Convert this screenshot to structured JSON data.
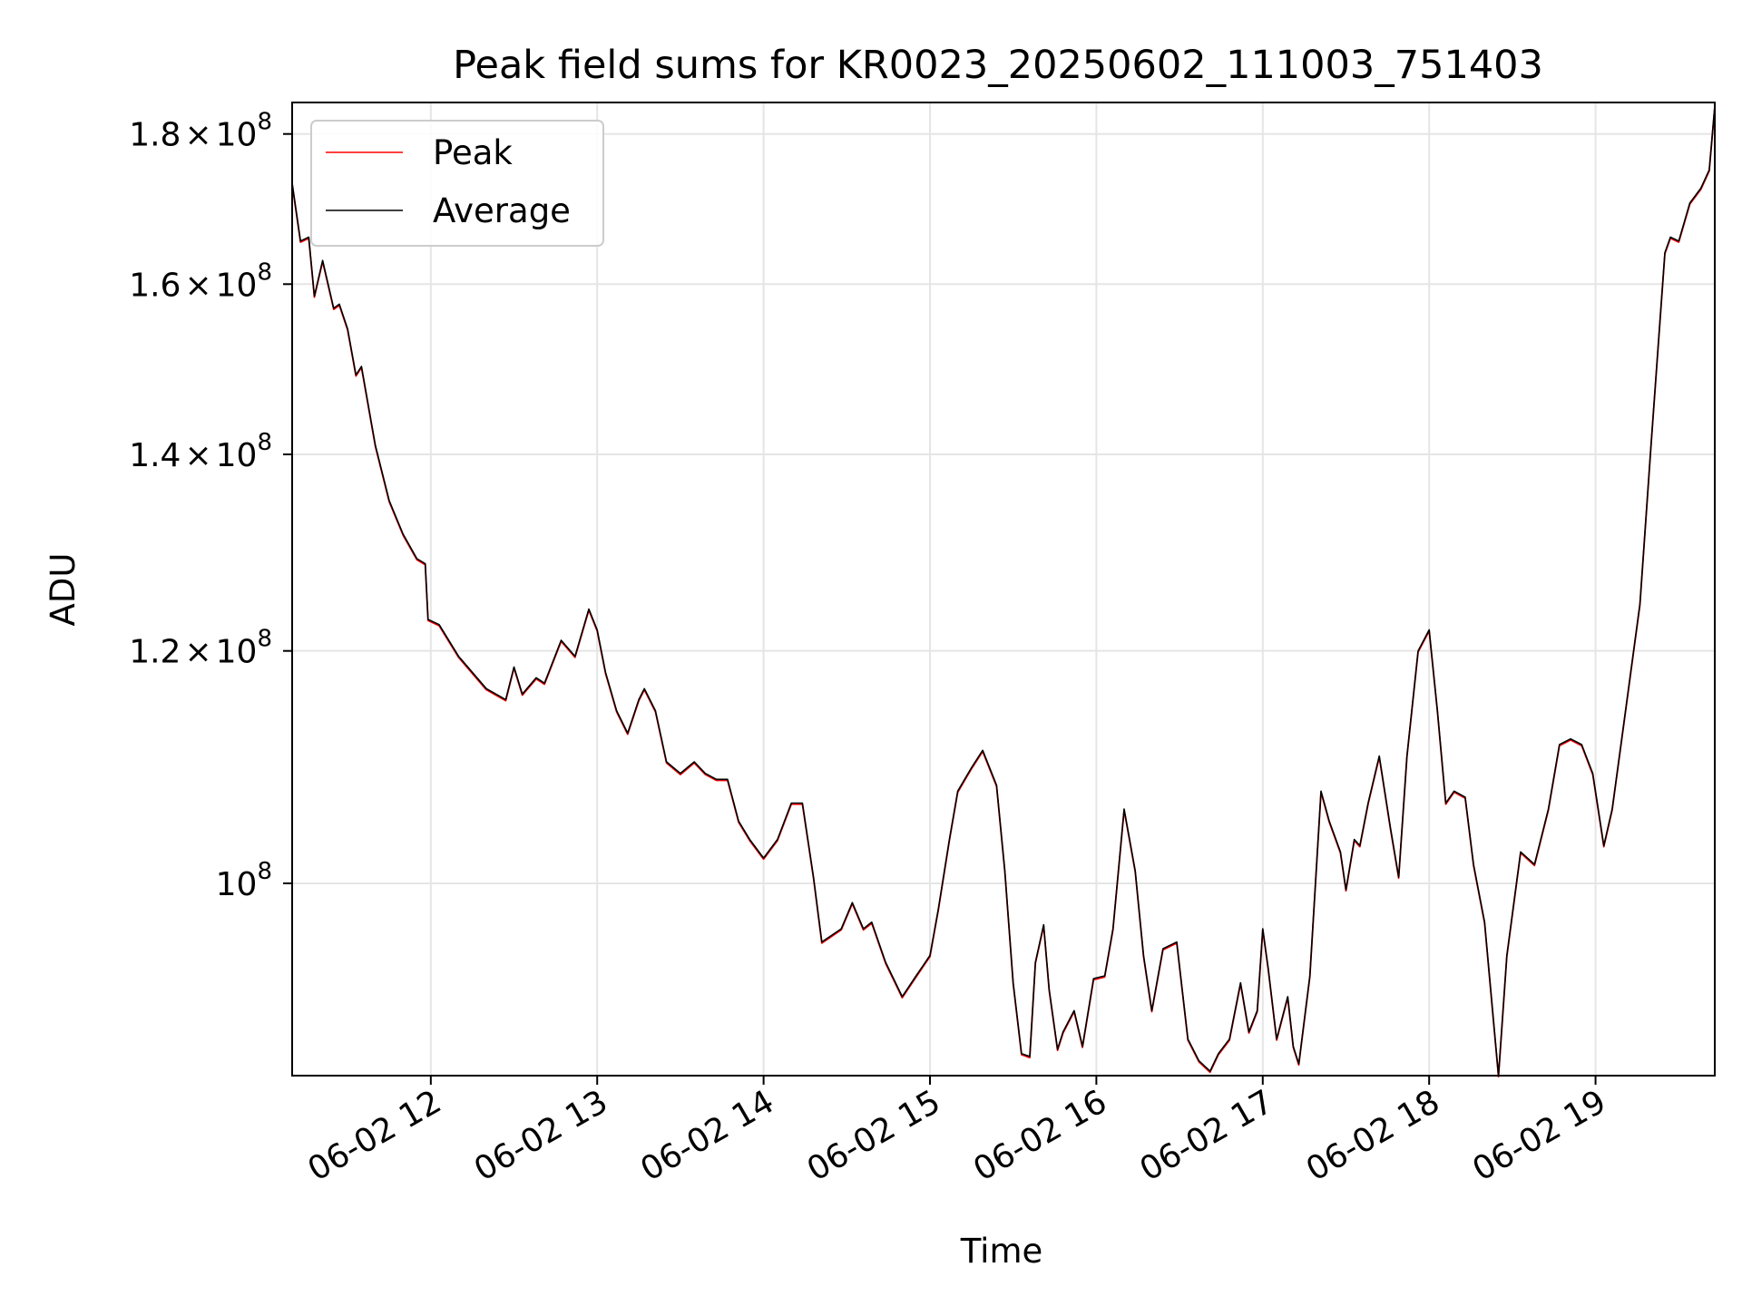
{
  "chart_data": {
    "type": "line",
    "title": "Peak field sums for KR0023_20250602_111003_751403",
    "xlabel": "Time",
    "ylabel": "ADU",
    "y_scale": "log",
    "xlim": [
      "06-02 11:10",
      "06-02 19:43"
    ],
    "ylim": [
      86000000,
      184500000
    ],
    "grid": true,
    "legend": "upper left",
    "x_ticks": [
      {
        "t": "06-02 12:00",
        "label": "06-02 12"
      },
      {
        "t": "06-02 13:00",
        "label": "06-02 13"
      },
      {
        "t": "06-02 14:00",
        "label": "06-02 14"
      },
      {
        "t": "06-02 15:00",
        "label": "06-02 15"
      },
      {
        "t": "06-02 16:00",
        "label": "06-02 16"
      },
      {
        "t": "06-02 17:00",
        "label": "06-02 17"
      },
      {
        "t": "06-02 18:00",
        "label": "06-02 18"
      },
      {
        "t": "06-02 19:00",
        "label": "06-02 19"
      }
    ],
    "y_ticks": [
      {
        "value": 100000000,
        "mant": "",
        "base": "10",
        "exp": "8"
      },
      {
        "value": 120000000,
        "mant": "1.2",
        "base": "10",
        "exp": "8"
      },
      {
        "value": 140000000,
        "mant": "1.4",
        "base": "10",
        "exp": "8"
      },
      {
        "value": 160000000,
        "mant": "1.6",
        "base": "10",
        "exp": "8"
      },
      {
        "value": 180000000,
        "mant": "1.8",
        "base": "10",
        "exp": "8"
      }
    ],
    "colors": {
      "peak": "#ff0000",
      "average": "#000000"
    },
    "series": [
      {
        "name": "Peak",
        "color": "#ff0000"
      },
      {
        "name": "Average",
        "color": "#000000"
      }
    ],
    "points": [
      [
        "06-02 11:10",
        173.2
      ],
      [
        "06-02 11:13",
        165.5
      ],
      [
        "06-02 11:16",
        166.0
      ],
      [
        "06-02 11:18",
        158.5
      ],
      [
        "06-02 11:21",
        163.0
      ],
      [
        "06-02 11:25",
        157.0
      ],
      [
        "06-02 11:27",
        157.5
      ],
      [
        "06-02 11:30",
        154.5
      ],
      [
        "06-02 11:33",
        149.0
      ],
      [
        "06-02 11:35",
        150.0
      ],
      [
        "06-02 11:40",
        141.0
      ],
      [
        "06-02 11:45",
        135.0
      ],
      [
        "06-02 11:50",
        131.5
      ],
      [
        "06-02 11:55",
        129.0
      ],
      [
        "06-02 11:58",
        128.5
      ],
      [
        "06-02 11:59",
        123.0
      ],
      [
        "06-02 12:03",
        122.5
      ],
      [
        "06-02 12:10",
        119.5
      ],
      [
        "06-02 12:20",
        116.5
      ],
      [
        "06-02 12:27",
        115.5
      ],
      [
        "06-02 12:30",
        118.5
      ],
      [
        "06-02 12:33",
        116.0
      ],
      [
        "06-02 12:38",
        117.5
      ],
      [
        "06-02 12:41",
        117.0
      ],
      [
        "06-02 12:47",
        121.0
      ],
      [
        "06-02 12:52",
        119.5
      ],
      [
        "06-02 12:57",
        124.0
      ],
      [
        "06-02 13:00",
        122.0
      ],
      [
        "06-02 13:03",
        118.0
      ],
      [
        "06-02 13:07",
        114.5
      ],
      [
        "06-02 13:11",
        112.5
      ],
      [
        "06-02 13:15",
        115.5
      ],
      [
        "06-02 13:17",
        116.5
      ],
      [
        "06-02 13:21",
        114.5
      ],
      [
        "06-02 13:25",
        110.0
      ],
      [
        "06-02 13:30",
        109.0
      ],
      [
        "06-02 13:35",
        110.0
      ],
      [
        "06-02 13:39",
        109.0
      ],
      [
        "06-02 13:43",
        108.5
      ],
      [
        "06-02 13:47",
        108.5
      ],
      [
        "06-02 13:51",
        105.0
      ],
      [
        "06-02 13:55",
        103.5
      ],
      [
        "06-02 14:00",
        102.0
      ],
      [
        "06-02 14:05",
        103.5
      ],
      [
        "06-02 14:10",
        106.5
      ],
      [
        "06-02 14:14",
        106.5
      ],
      [
        "06-02 14:18",
        100.5
      ],
      [
        "06-02 14:21",
        95.5
      ],
      [
        "06-02 14:28",
        96.5
      ],
      [
        "06-02 14:32",
        98.5
      ],
      [
        "06-02 14:36",
        96.5
      ],
      [
        "06-02 14:39",
        97.0
      ],
      [
        "06-02 14:44",
        94.0
      ],
      [
        "06-02 14:50",
        91.5
      ],
      [
        "06-02 14:55",
        93.0
      ],
      [
        "06-02 15:00",
        94.5
      ],
      [
        "06-02 15:03",
        98.0
      ],
      [
        "06-02 15:07",
        103.5
      ],
      [
        "06-02 15:10",
        107.5
      ],
      [
        "06-02 15:15",
        109.5
      ],
      [
        "06-02 15:19",
        111.0
      ],
      [
        "06-02 15:24",
        108.0
      ],
      [
        "06-02 15:27",
        101.0
      ],
      [
        "06-02 15:30",
        92.5
      ],
      [
        "06-02 15:33",
        87.5
      ],
      [
        "06-02 15:36",
        87.3
      ],
      [
        "06-02 15:38",
        94.0
      ],
      [
        "06-02 15:41",
        96.8
      ],
      [
        "06-02 15:43",
        92.0
      ],
      [
        "06-02 15:46",
        87.8
      ],
      [
        "06-02 15:48",
        89.0
      ],
      [
        "06-02 15:52",
        90.5
      ],
      [
        "06-02 15:55",
        88.0
      ],
      [
        "06-02 15:59",
        92.8
      ],
      [
        "06-02 16:03",
        93.0
      ],
      [
        "06-02 16:06",
        96.5
      ],
      [
        "06-02 16:10",
        106.0
      ],
      [
        "06-02 16:14",
        101.0
      ],
      [
        "06-02 16:17",
        94.5
      ],
      [
        "06-02 16:20",
        90.5
      ],
      [
        "06-02 16:24",
        95.0
      ],
      [
        "06-02 16:29",
        95.5
      ],
      [
        "06-02 16:33",
        88.5
      ],
      [
        "06-02 16:37",
        87.0
      ],
      [
        "06-02 16:41",
        86.3
      ],
      [
        "06-02 16:44",
        87.5
      ],
      [
        "06-02 16:48",
        88.5
      ],
      [
        "06-02 16:52",
        92.5
      ],
      [
        "06-02 16:55",
        89.0
      ],
      [
        "06-02 16:58",
        90.5
      ],
      [
        "06-02 17:00",
        96.5
      ],
      [
        "06-02 17:02",
        93.5
      ],
      [
        "06-02 17:05",
        88.5
      ],
      [
        "06-02 17:09",
        91.5
      ],
      [
        "06-02 17:11",
        88.0
      ],
      [
        "06-02 17:13",
        86.8
      ],
      [
        "06-02 17:17",
        93.0
      ],
      [
        "06-02 17:21",
        107.5
      ],
      [
        "06-02 17:24",
        105.0
      ],
      [
        "06-02 17:28",
        102.5
      ],
      [
        "06-02 17:30",
        99.5
      ],
      [
        "06-02 17:33",
        103.5
      ],
      [
        "06-02 17:35",
        103.0
      ],
      [
        "06-02 17:38",
        106.5
      ],
      [
        "06-02 17:42",
        110.5
      ],
      [
        "06-02 17:46",
        104.5
      ],
      [
        "06-02 17:49",
        100.5
      ],
      [
        "06-02 17:52",
        110.5
      ],
      [
        "06-02 17:56",
        120.0
      ],
      [
        "06-02 18:00",
        122.0
      ],
      [
        "06-02 18:03",
        114.5
      ],
      [
        "06-02 18:06",
        106.5
      ],
      [
        "06-02 18:09",
        107.5
      ],
      [
        "06-02 18:13",
        107.0
      ],
      [
        "06-02 18:16",
        101.5
      ],
      [
        "06-02 18:20",
        97.0
      ],
      [
        "06-02 18:25",
        86.0
      ],
      [
        "06-02 18:28",
        94.5
      ],
      [
        "06-02 18:33",
        102.5
      ],
      [
        "06-02 18:38",
        101.5
      ],
      [
        "06-02 18:43",
        106.0
      ],
      [
        "06-02 18:47",
        111.5
      ],
      [
        "06-02 18:51",
        112.0
      ],
      [
        "06-02 18:55",
        111.5
      ],
      [
        "06-02 18:59",
        109.0
      ],
      [
        "06-02 19:03",
        103.0
      ],
      [
        "06-02 19:06",
        106.0
      ],
      [
        "06-02 19:10",
        113.0
      ],
      [
        "06-02 19:16",
        124.5
      ],
      [
        "06-02 19:20",
        141.0
      ],
      [
        "06-02 19:25",
        164.0
      ],
      [
        "06-02 19:27",
        166.0
      ],
      [
        "06-02 19:30",
        165.5
      ],
      [
        "06-02 19:34",
        170.5
      ],
      [
        "06-02 19:38",
        172.5
      ],
      [
        "06-02 19:41",
        175.0
      ],
      [
        "06-02 19:43",
        184.0
      ]
    ]
  }
}
